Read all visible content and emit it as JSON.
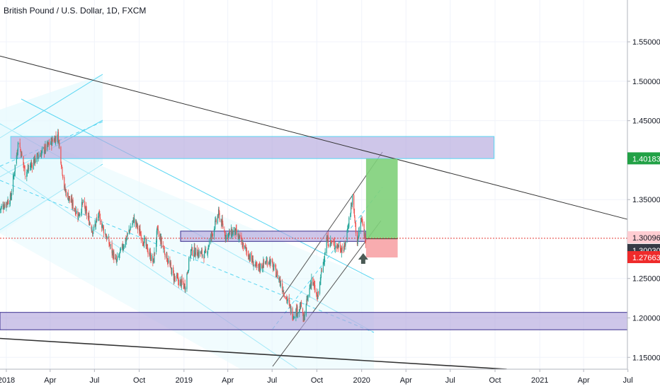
{
  "header": {
    "symbol": "British Pound / U.S. Dollar, 1D, FXCM"
  },
  "colors": {
    "up_candle": "#26a69a",
    "down_candle": "#ef5350",
    "zone_fill": "#b3a7dd",
    "zone_stroke": "#3b2f8f",
    "channel_line": "#59d6f2",
    "channel_fill": "#e6fafe",
    "trend_line": "#333333",
    "target_fill": "#7fd07a",
    "stop_fill": "#f7a3a6",
    "last_price_line": "#e53935",
    "badge_green": "#22a146",
    "badge_red": "#ef2b2b",
    "badge_dark": "#363a45",
    "badge_pink": "#ffcdd2",
    "arrow": "#4a5a55"
  },
  "chart_data": {
    "type": "candlestick",
    "title": "British Pound / U.S. Dollar, 1D, FXCM",
    "x_range": [
      "2017-12-19",
      "2021-06-30"
    ],
    "y_range": [
      1.135,
      1.603
    ],
    "grid": true,
    "price_axis": {
      "side": "right",
      "ticks": [
        "1.15000",
        "1.20000",
        "1.25000",
        "1.35000",
        "1.45000",
        "1.50000",
        "1.55000"
      ]
    },
    "time_axis": {
      "ticks": [
        {
          "label": "2018",
          "date": "2018-01-01"
        },
        {
          "label": "Apr",
          "date": "2018-04-01"
        },
        {
          "label": "Jul",
          "date": "2018-07-01"
        },
        {
          "label": "Oct",
          "date": "2018-10-01"
        },
        {
          "label": "2019",
          "date": "2019-01-01"
        },
        {
          "label": "Apr",
          "date": "2019-04-01"
        },
        {
          "label": "Jul",
          "date": "2019-07-01"
        },
        {
          "label": "Oct",
          "date": "2019-10-01"
        },
        {
          "label": "2020",
          "date": "2020-01-01"
        },
        {
          "label": "Apr",
          "date": "2020-04-01"
        },
        {
          "label": "Jul",
          "date": "2020-07-01"
        },
        {
          "label": "Oct",
          "date": "2020-10-01"
        },
        {
          "label": "2021",
          "date": "2021-01-01"
        },
        {
          "label": "Apr",
          "date": "2021-04-01"
        },
        {
          "label": "Jul",
          "date": "2021-07-01"
        }
      ]
    },
    "price_path": [
      [
        "2017-12-19",
        1.338
      ],
      [
        "2018-01-10",
        1.352
      ],
      [
        "2018-01-26",
        1.425
      ],
      [
        "2018-02-09",
        1.383
      ],
      [
        "2018-02-28",
        1.4
      ],
      [
        "2018-04-17",
        1.432
      ],
      [
        "2018-05-01",
        1.362
      ],
      [
        "2018-05-29",
        1.33
      ],
      [
        "2018-06-07",
        1.345
      ],
      [
        "2018-06-28",
        1.31
      ],
      [
        "2018-07-09",
        1.33
      ],
      [
        "2018-08-15",
        1.27
      ],
      [
        "2018-09-20",
        1.325
      ],
      [
        "2018-10-30",
        1.27
      ],
      [
        "2018-11-07",
        1.31
      ],
      [
        "2018-12-11",
        1.252
      ],
      [
        "2019-01-03",
        1.24
      ],
      [
        "2019-01-15",
        1.285
      ],
      [
        "2019-02-14",
        1.28
      ],
      [
        "2019-03-13",
        1.332
      ],
      [
        "2019-03-28",
        1.304
      ],
      [
        "2019-04-15",
        1.31
      ],
      [
        "2019-05-31",
        1.262
      ],
      [
        "2019-06-25",
        1.274
      ],
      [
        "2019-07-15",
        1.25
      ],
      [
        "2019-08-12",
        1.204
      ],
      [
        "2019-08-30",
        1.215
      ],
      [
        "2019-09-03",
        1.196
      ],
      [
        "2019-09-20",
        1.25
      ],
      [
        "2019-10-02",
        1.224
      ],
      [
        "2019-10-21",
        1.298
      ],
      [
        "2019-11-26",
        1.287
      ],
      [
        "2019-12-13",
        1.351
      ],
      [
        "2019-12-23",
        1.295
      ],
      [
        "2019-12-31",
        1.325
      ],
      [
        "2020-01-09",
        1.3
      ]
    ],
    "levels": {
      "last_close": 1.30096,
      "last_close_label": "1.30096",
      "entry": 1.3003,
      "entry_label": "1.30030",
      "target": 1.40183,
      "target_label": "1.40183",
      "stop": 1.27663,
      "stop_label": "1.27663"
    },
    "zones": [
      {
        "name": "upper-supply-zone",
        "from": "2018-01-10",
        "to": "2020-09-29",
        "top": 1.43,
        "bottom": 1.402
      },
      {
        "name": "mid-zone",
        "from": "2018-12-25",
        "to": "2020-01-10",
        "top": 1.31,
        "bottom": 1.297
      },
      {
        "name": "lower-demand-zone",
        "from": "2017-12-19",
        "to": "2021-07-01",
        "top": 1.207,
        "bottom": 1.185
      }
    ],
    "position_tool": {
      "from": "2020-01-10",
      "to": "2020-03-15",
      "entry": 1.3003,
      "target": 1.40183,
      "stop": 1.27663
    },
    "trend_lines": [
      {
        "name": "upper-trendline",
        "from": [
          "2017-12-19",
          1.532
        ],
        "to": [
          "2021-06-30",
          1.325
        ]
      },
      {
        "name": "lower-trendline",
        "from": [
          "2017-12-19",
          1.174
        ],
        "to": [
          "2020-10-25",
          1.135
        ]
      }
    ]
  }
}
